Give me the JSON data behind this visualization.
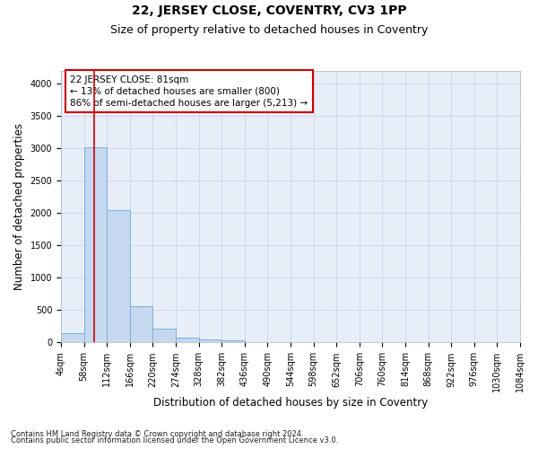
{
  "title": "22, JERSEY CLOSE, COVENTRY, CV3 1PP",
  "subtitle": "Size of property relative to detached houses in Coventry",
  "xlabel": "Distribution of detached houses by size in Coventry",
  "ylabel": "Number of detached properties",
  "footnote1": "Contains HM Land Registry data © Crown copyright and database right 2024.",
  "footnote2": "Contains public sector information licensed under the Open Government Licence v3.0.",
  "bin_edges": [
    4,
    58,
    112,
    166,
    220,
    274,
    328,
    382,
    436,
    490,
    544,
    598,
    652,
    706,
    760,
    814,
    868,
    922,
    976,
    1030,
    1084
  ],
  "bar_heights": [
    140,
    3020,
    2050,
    560,
    215,
    80,
    55,
    40,
    0,
    0,
    0,
    0,
    0,
    0,
    0,
    0,
    0,
    0,
    0,
    0
  ],
  "bar_color": "#c5d8f0",
  "bar_edge_color": "#7ab0d8",
  "property_size": 81,
  "red_line_color": "#cc0000",
  "annotation_line1": "22 JERSEY CLOSE: 81sqm",
  "annotation_line2": "← 13% of detached houses are smaller (800)",
  "annotation_line3": "86% of semi-detached houses are larger (5,213) →",
  "annotation_box_color": "#ffffff",
  "annotation_box_edge": "#cc0000",
  "ylim": [
    0,
    4200
  ],
  "yticks": [
    0,
    500,
    1000,
    1500,
    2000,
    2500,
    3000,
    3500,
    4000
  ],
  "grid_color": "#c8d4e8",
  "background_color": "#e8eef8",
  "title_fontsize": 10,
  "subtitle_fontsize": 9,
  "axis_label_fontsize": 8.5,
  "tick_fontsize": 7,
  "annotation_fontsize": 7.5,
  "footnote_fontsize": 6
}
